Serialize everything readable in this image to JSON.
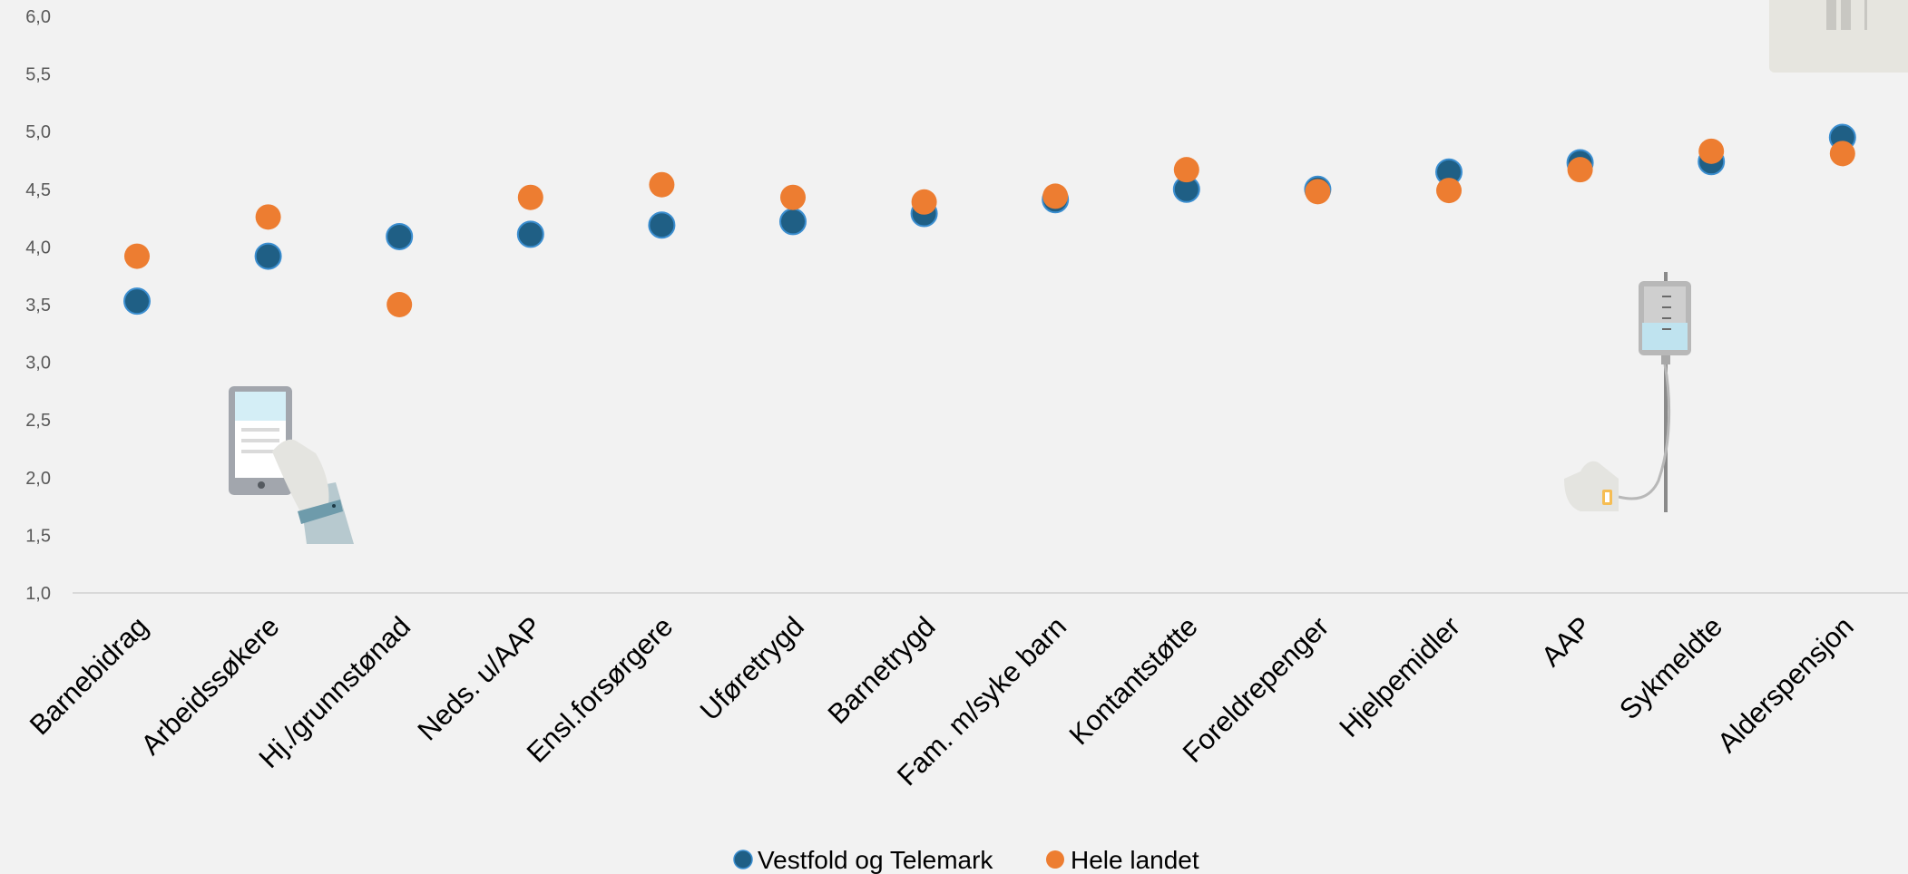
{
  "chart_data": {
    "type": "scatter",
    "categories": [
      "Barnebidrag",
      "Arbeidssøkere",
      "Hj./grunnstønad",
      "Neds. u/AAP",
      "Ensl.forsørgere",
      "Uføretrygd",
      "Barnetrygd",
      "Fam. m/syke barn",
      "Kontantstøtte",
      "Foreldrepenger",
      "Hjelpemidler",
      "AAP",
      "Sykmeldte",
      "Alderspensjon"
    ],
    "series": [
      {
        "name": "Vestfold og Telemark",
        "color": "#1f5f85",
        "values": [
          3.53,
          3.92,
          4.09,
          4.11,
          4.19,
          4.22,
          4.29,
          4.41,
          4.5,
          4.5,
          4.65,
          4.73,
          4.74,
          4.95
        ]
      },
      {
        "name": "Hele landet",
        "color": "#ed7d31",
        "values": [
          3.92,
          4.26,
          3.5,
          4.43,
          4.54,
          4.43,
          4.39,
          4.44,
          4.67,
          4.48,
          4.49,
          4.67,
          4.83,
          4.81
        ]
      }
    ],
    "ylim": [
      1.0,
      6.0
    ],
    "yticks": [
      "1,0",
      "1,5",
      "2,0",
      "2,5",
      "3,0",
      "3,5",
      "4,0",
      "4,5",
      "5,0",
      "5,5",
      "6,0"
    ],
    "ytick_values": [
      1.0,
      1.5,
      2.0,
      2.5,
      3.0,
      3.5,
      4.0,
      4.5,
      5.0,
      5.5,
      6.0
    ],
    "grid": false,
    "legend_position": "bottom-center",
    "decorations": [
      "phone-in-hand-icon",
      "iv-drip-icon",
      "pause-tab-icon"
    ]
  }
}
